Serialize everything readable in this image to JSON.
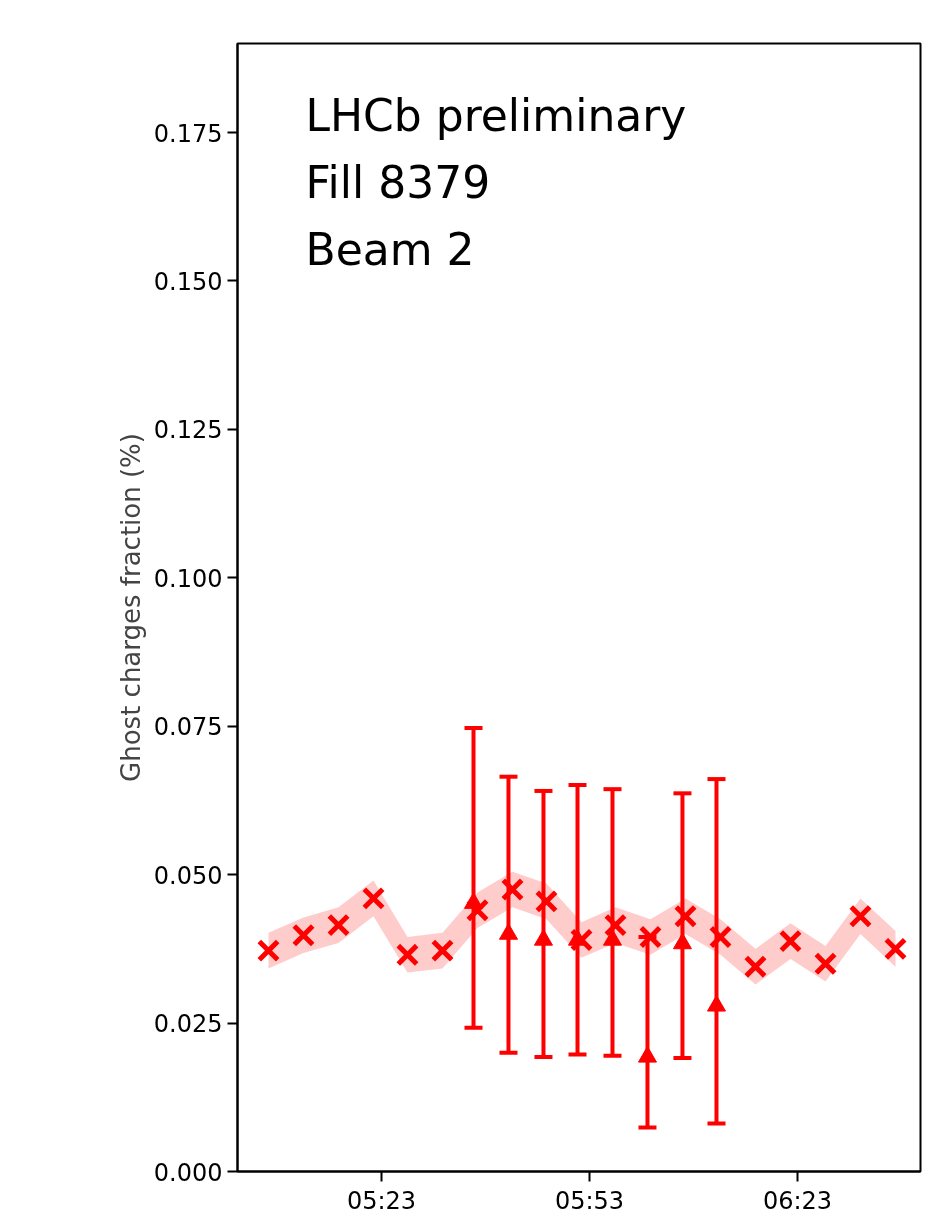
{
  "chart_data": {
    "type": "scatter",
    "ylabel": "Ghost charges fraction (%)",
    "annotations": [
      "LHCb preliminary",
      "Fill 8379",
      "Beam 2"
    ],
    "series": [
      {
        "marker": "cross",
        "color": "#ff0000",
        "x": [
          5.1117,
          5.1958,
          5.28,
          5.3641,
          5.4458,
          5.53,
          5.6141,
          5.6982,
          5.7799,
          5.8641,
          5.9458,
          6.0299,
          6.1141,
          6.1982,
          6.2823,
          6.3665,
          6.4506,
          6.5347,
          6.6189
        ],
        "values": [
          0.0372,
          0.0398,
          0.0415,
          0.046,
          0.0365,
          0.0372,
          0.044,
          0.0475,
          0.0455,
          0.039,
          0.0415,
          0.0395,
          0.043,
          0.0395,
          0.0345,
          0.0388,
          0.035,
          0.043,
          0.0375
        ],
        "lower": [
          0.0342,
          0.0368,
          0.0385,
          0.043,
          0.0335,
          0.0342,
          0.041,
          0.0445,
          0.0425,
          0.036,
          0.0385,
          0.0365,
          0.04,
          0.0365,
          0.0315,
          0.0358,
          0.032,
          0.04,
          0.0345
        ],
        "upper": [
          0.0402,
          0.0428,
          0.0445,
          0.049,
          0.0395,
          0.0402,
          0.047,
          0.0505,
          0.0485,
          0.042,
          0.0445,
          0.0425,
          0.046,
          0.0425,
          0.0375,
          0.0418,
          0.038,
          0.046,
          0.0405
        ]
      },
      {
        "marker": "triangle",
        "color": "#ff0000",
        "x": [
          5.6045,
          5.6886,
          5.7727,
          5.8545,
          5.9386,
          6.0227,
          6.1068,
          6.1886
        ],
        "values": [
          0.0452,
          0.04,
          0.039,
          0.039,
          0.039,
          0.0193,
          0.0384,
          0.0279
        ],
        "errors": [
          [
            0.0242,
            0.0747
          ],
          [
            0.02,
            0.0665
          ],
          [
            0.0193,
            0.0641
          ],
          [
            0.0197,
            0.0651
          ],
          [
            0.0195,
            0.0644
          ],
          [
            0.0074,
            0.0395
          ],
          [
            0.0191,
            0.0637
          ],
          [
            0.0081,
            0.0661
          ]
        ]
      }
    ],
    "xlim": [
      5.0372,
      6.679
    ],
    "ylim": [
      0,
      0.19
    ],
    "xticks": [
      {
        "value": 5.3833,
        "label": "05:23"
      },
      {
        "value": 5.8833,
        "label": "05:53"
      },
      {
        "value": 6.3833,
        "label": "06:23"
      }
    ],
    "yticks": [
      {
        "value": 0,
        "label": "0.000"
      },
      {
        "value": 0.025,
        "label": "0.025"
      },
      {
        "value": 0.05,
        "label": "0.050"
      },
      {
        "value": 0.075,
        "label": "0.075"
      },
      {
        "value": 0.1,
        "label": "0.100"
      },
      {
        "value": 0.125,
        "label": "0.125"
      },
      {
        "value": 0.15,
        "label": "0.150"
      },
      {
        "value": 0.175,
        "label": "0.175"
      }
    ],
    "grid": false
  }
}
